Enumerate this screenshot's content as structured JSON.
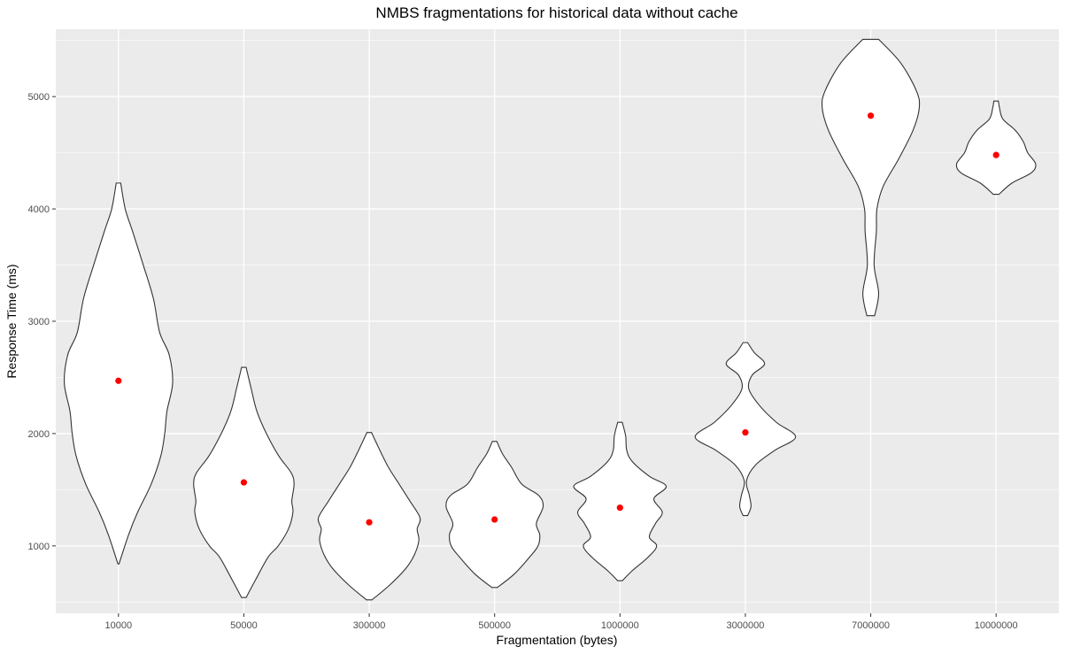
{
  "chart_data": {
    "type": "violin",
    "title": "NMBS fragmentations for historical data without cache",
    "xlabel": "Fragmentation (bytes)",
    "ylabel": "Response Time (ms)",
    "categories": [
      "10000",
      "50000",
      "300000",
      "500000",
      "1000000",
      "3000000",
      "7000000",
      "10000000"
    ],
    "ylim": [
      400,
      5600
    ],
    "yticks": [
      1000,
      2000,
      3000,
      4000,
      5000
    ],
    "grid": true,
    "panel_background": "#ebebeb",
    "grid_color": "#ffffff",
    "violin_fill": "#ffffff",
    "violin_stroke": "#333333",
    "point_color": "#ff0000",
    "means": [
      2470,
      1565,
      1210,
      1235,
      1340,
      2010,
      4830,
      4480
    ],
    "violins": [
      {
        "min": 840,
        "max": 4230,
        "profile": [
          [
            840,
            0.01
          ],
          [
            1100,
            0.18
          ],
          [
            1300,
            0.34
          ],
          [
            1550,
            0.58
          ],
          [
            1800,
            0.75
          ],
          [
            2000,
            0.82
          ],
          [
            2200,
            0.86
          ],
          [
            2450,
            0.96
          ],
          [
            2700,
            0.9
          ],
          [
            2900,
            0.73
          ],
          [
            3200,
            0.62
          ],
          [
            3500,
            0.44
          ],
          [
            3800,
            0.25
          ],
          [
            4000,
            0.12
          ],
          [
            4230,
            0.04
          ]
        ]
      },
      {
        "min": 540,
        "max": 2590,
        "profile": [
          [
            540,
            0.04
          ],
          [
            700,
            0.21
          ],
          [
            900,
            0.43
          ],
          [
            1000,
            0.61
          ],
          [
            1150,
            0.79
          ],
          [
            1300,
            0.87
          ],
          [
            1400,
            0.85
          ],
          [
            1550,
            0.89
          ],
          [
            1650,
            0.84
          ],
          [
            1800,
            0.62
          ],
          [
            2000,
            0.4
          ],
          [
            2200,
            0.23
          ],
          [
            2400,
            0.13
          ],
          [
            2590,
            0.04
          ]
        ]
      },
      {
        "min": 520,
        "max": 2010,
        "profile": [
          [
            520,
            0.05
          ],
          [
            650,
            0.36
          ],
          [
            800,
            0.65
          ],
          [
            920,
            0.8
          ],
          [
            1050,
            0.88
          ],
          [
            1150,
            0.85
          ],
          [
            1250,
            0.9
          ],
          [
            1400,
            0.72
          ],
          [
            1550,
            0.53
          ],
          [
            1700,
            0.34
          ],
          [
            1850,
            0.19
          ],
          [
            2010,
            0.04
          ]
        ]
      },
      {
        "min": 630,
        "max": 1930,
        "profile": [
          [
            630,
            0.05
          ],
          [
            750,
            0.35
          ],
          [
            900,
            0.62
          ],
          [
            1000,
            0.77
          ],
          [
            1100,
            0.8
          ],
          [
            1200,
            0.74
          ],
          [
            1350,
            0.86
          ],
          [
            1450,
            0.78
          ],
          [
            1550,
            0.48
          ],
          [
            1700,
            0.3
          ],
          [
            1820,
            0.14
          ],
          [
            1930,
            0.04
          ]
        ]
      },
      {
        "min": 690,
        "max": 2100,
        "profile": [
          [
            690,
            0.04
          ],
          [
            780,
            0.22
          ],
          [
            900,
            0.5
          ],
          [
            1000,
            0.65
          ],
          [
            1080,
            0.52
          ],
          [
            1200,
            0.63
          ],
          [
            1300,
            0.75
          ],
          [
            1420,
            0.6
          ],
          [
            1530,
            0.82
          ],
          [
            1620,
            0.52
          ],
          [
            1750,
            0.22
          ],
          [
            1850,
            0.12
          ],
          [
            1980,
            0.1
          ],
          [
            2100,
            0.04
          ]
        ]
      },
      {
        "min": 1270,
        "max": 2810,
        "profile": [
          [
            1270,
            0.04
          ],
          [
            1350,
            0.1
          ],
          [
            1450,
            0.07
          ],
          [
            1580,
            0.02
          ],
          [
            1720,
            0.18
          ],
          [
            1850,
            0.52
          ],
          [
            1970,
            0.89
          ],
          [
            2100,
            0.55
          ],
          [
            2250,
            0.25
          ],
          [
            2400,
            0.06
          ],
          [
            2520,
            0.12
          ],
          [
            2620,
            0.34
          ],
          [
            2720,
            0.16
          ],
          [
            2810,
            0.04
          ]
        ]
      },
      {
        "min": 3050,
        "max": 5510,
        "profile": [
          [
            3050,
            0.07
          ],
          [
            3250,
            0.14
          ],
          [
            3500,
            0.06
          ],
          [
            3800,
            0.1
          ],
          [
            4000,
            0.11
          ],
          [
            4200,
            0.22
          ],
          [
            4450,
            0.5
          ],
          [
            4700,
            0.75
          ],
          [
            4900,
            0.86
          ],
          [
            5050,
            0.81
          ],
          [
            5300,
            0.53
          ],
          [
            5510,
            0.14
          ]
        ]
      },
      {
        "min": 4130,
        "max": 4960,
        "profile": [
          [
            4130,
            0.05
          ],
          [
            4230,
            0.28
          ],
          [
            4320,
            0.62
          ],
          [
            4400,
            0.7
          ],
          [
            4500,
            0.56
          ],
          [
            4600,
            0.48
          ],
          [
            4700,
            0.34
          ],
          [
            4800,
            0.12
          ],
          [
            4900,
            0.06
          ],
          [
            4960,
            0.04
          ]
        ]
      }
    ]
  }
}
